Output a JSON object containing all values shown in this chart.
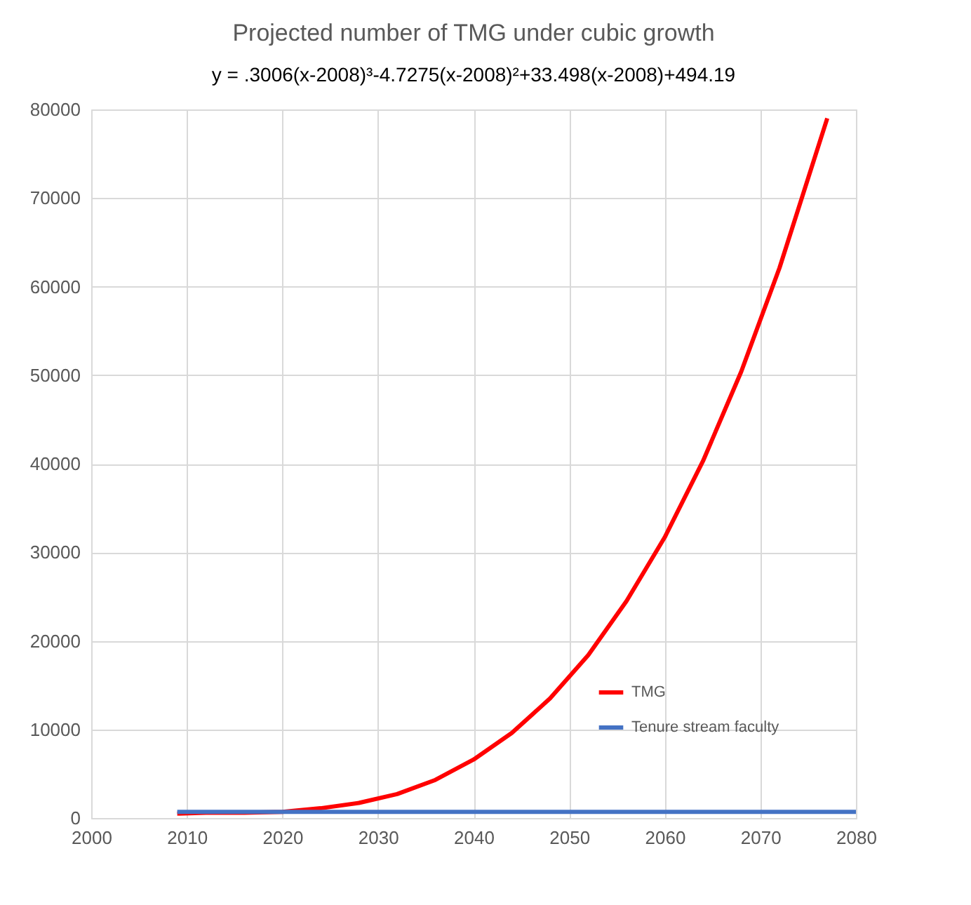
{
  "chart_data": {
    "type": "line",
    "title": "Projected number of TMG under cubic growth",
    "annotations": [
      "y = .3006(x-2008)³-4.7275(x-2008)²+33.498(x-2008)+494.19"
    ],
    "series": [
      {
        "name": "TMG",
        "color": "#ff0000",
        "x": [
          2009,
          2012,
          2016,
          2020,
          2024,
          2028,
          2032,
          2036,
          2040,
          2044,
          2048,
          2052,
          2056,
          2060,
          2064,
          2068,
          2072,
          2077
        ],
        "values": [
          500,
          600,
          600,
          700,
          1100,
          1700,
          2700,
          4300,
          6600,
          9600,
          13500,
          18400,
          24500,
          31700,
          40300,
          50400,
          62100,
          79000
        ]
      },
      {
        "name": "Tenure stream faculty",
        "color": "#4472c4",
        "x": [
          2009,
          2080
        ],
        "values": [
          700,
          700
        ]
      }
    ],
    "xlim": [
      2000,
      2080
    ],
    "xticks": [
      2000,
      2010,
      2020,
      2030,
      2040,
      2050,
      2060,
      2070,
      2080
    ],
    "ylim": [
      0,
      80000
    ],
    "yticks": [
      0,
      10000,
      20000,
      30000,
      40000,
      50000,
      60000,
      70000,
      80000
    ],
    "grid": true,
    "legend": "bottom right",
    "line_style": "solid",
    "marker": "none"
  }
}
